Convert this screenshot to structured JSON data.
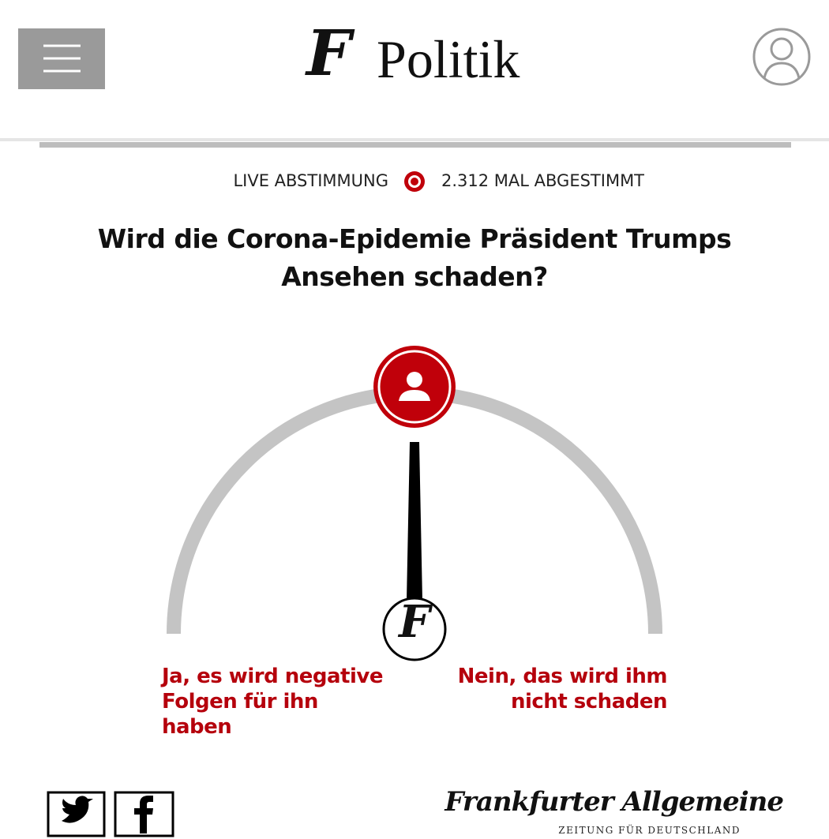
{
  "header": {
    "logo": "F",
    "section": "Politik"
  },
  "poll": {
    "live_label": "LIVE ABSTIMMUNG",
    "vote_count": "2.312 MAL ABGESTIMMT",
    "question": [
      "Wird die Corona-Epidemie Präsident Trumps",
      "Ansehen schaden?"
    ],
    "gauge_logo": "F",
    "options": [
      [
        "Ja, es wird negative",
        "Folgen für ihn",
        "haben"
      ],
      [
        "Nein, das wird ihm",
        "nicht schaden"
      ]
    ]
  },
  "footer": {
    "brand": "Frankfurter Allgemeine",
    "tagline": "ZEITUNG FÜR DEUTSCHLAND"
  }
}
